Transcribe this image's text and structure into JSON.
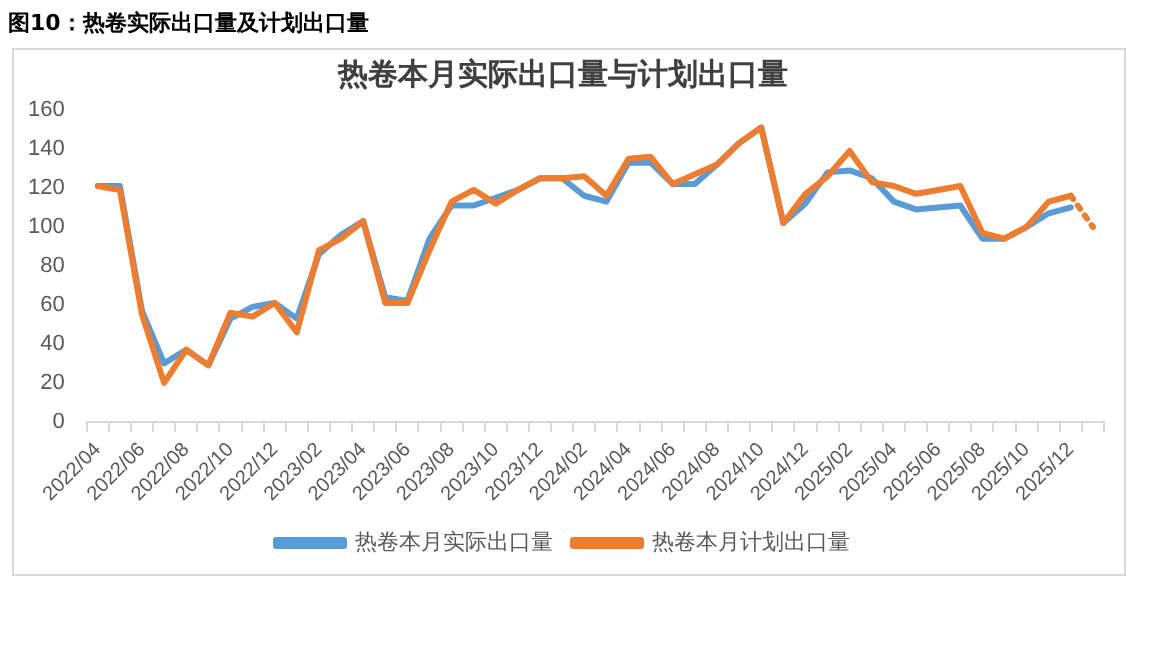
{
  "chart_data": {
    "type": "line",
    "title": "热卷本月实际出口量与计划出口量",
    "annotations": [
      "图10：热卷实际出口量及计划出口量"
    ],
    "categories": [
      "2022/04",
      null,
      "2022/06",
      null,
      "2022/08",
      null,
      "2022/10",
      null,
      "2022/12",
      null,
      "2023/02",
      null,
      "2023/04",
      null,
      "2023/06",
      null,
      "2023/08",
      null,
      "2023/10",
      null,
      "2023/12",
      null,
      "2024/02",
      null,
      "2024/04",
      null,
      "2024/06",
      null,
      "2024/08",
      null,
      "2024/10",
      null,
      "2024/12",
      null,
      "2025/02",
      null,
      "2025/04",
      null,
      "2025/06",
      null,
      "2025/08",
      null,
      "2025/10",
      null,
      "2025/12",
      null
    ],
    "series": [
      {
        "name": "热卷本月实际出口量",
        "color": "#5b9bd5",
        "values": [
          121,
          121,
          57,
          30,
          37,
          29,
          53,
          59,
          61,
          53,
          86,
          96,
          103,
          64,
          62,
          94,
          111,
          111,
          115,
          119,
          125,
          125,
          116,
          113,
          133,
          133,
          122,
          122,
          132,
          143,
          151,
          102,
          112,
          128,
          129,
          125,
          113,
          109,
          110,
          111,
          94,
          94,
          100,
          107,
          110,
          null
        ]
      },
      {
        "name": "热卷本月计划出口量",
        "color": "#ed7d31",
        "values": [
          121,
          119,
          55,
          20,
          37,
          29,
          56,
          54,
          61,
          46,
          88,
          94,
          103,
          61,
          61,
          88,
          113,
          119,
          112,
          119,
          125,
          125,
          126,
          116,
          135,
          136,
          122,
          127,
          132,
          143,
          151,
          102,
          117,
          126,
          139,
          123,
          121,
          117,
          119,
          121,
          97,
          94,
          100,
          113,
          116,
          null
        ]
      },
      {
        "color": "#ed7d31",
        "line_style": "dotted",
        "values": [
          null,
          null,
          null,
          null,
          null,
          null,
          null,
          null,
          null,
          null,
          null,
          null,
          null,
          null,
          null,
          null,
          null,
          null,
          null,
          null,
          null,
          null,
          null,
          null,
          null,
          null,
          null,
          null,
          null,
          null,
          null,
          null,
          null,
          null,
          null,
          null,
          null,
          null,
          null,
          null,
          null,
          null,
          null,
          null,
          116,
          100
        ]
      }
    ],
    "ylim": [
      0,
      160
    ],
    "yticks": [
      0,
      20,
      40,
      60,
      80,
      100,
      120,
      140,
      160
    ],
    "grid": false,
    "legend": "bottom",
    "marker": "none",
    "line_style": "solid"
  }
}
